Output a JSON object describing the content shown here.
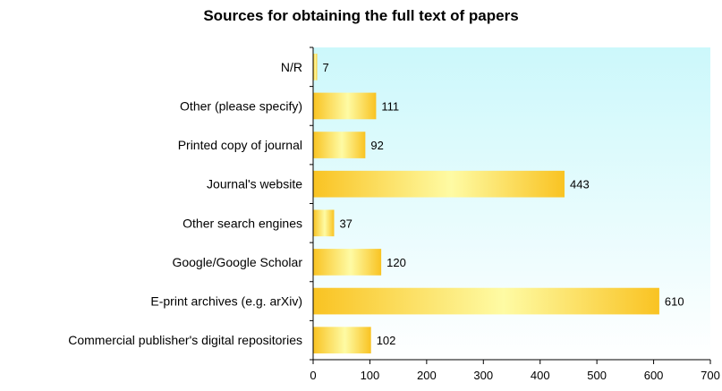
{
  "chart_data": {
    "type": "bar",
    "orientation": "horizontal",
    "title": "Sources for obtaining the full text of papers",
    "xlabel": "",
    "ylabel": "",
    "categories": [
      "N/R",
      "Other (please specify)",
      "Printed copy of journal",
      "Journal's website",
      "Other search engines",
      "Google/Google Scholar",
      "E-print archives (e.g. arXiv)",
      "Commercial publisher's digital repositories"
    ],
    "values": [
      7,
      111,
      92,
      443,
      37,
      120,
      610,
      102
    ],
    "xlim": [
      0,
      700
    ],
    "xticks": [
      0,
      100,
      200,
      300,
      400,
      500,
      600,
      700
    ],
    "grid": false,
    "legend": "none",
    "data_labels": true,
    "colors": {
      "plot_bg_top": "#ccf8fb",
      "plot_bg_bottom": "#ffffff",
      "bar_dark": "#f9c322",
      "bar_light": "#fefba4"
    }
  }
}
